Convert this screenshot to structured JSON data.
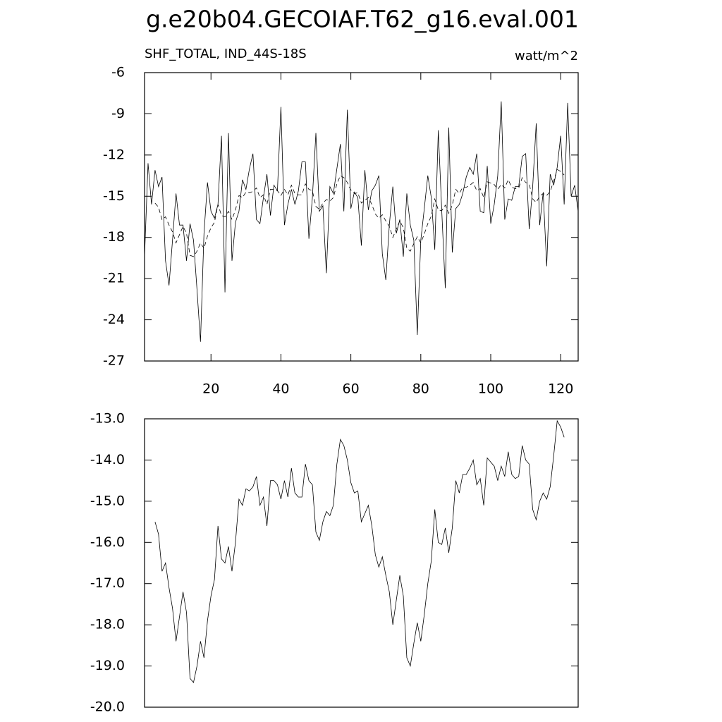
{
  "title": "g.e20b04.GECOIAF.T62_g16.eval.001",
  "chart_data": [
    {
      "type": "line",
      "subtitle": "SHF_TOTAL, IND_44S-18S",
      "units": "watt/m^2",
      "x": [
        1,
        2,
        3,
        4,
        5,
        6,
        7,
        8,
        9,
        10,
        11,
        12,
        13,
        14,
        15,
        16,
        17,
        18,
        19,
        20,
        21,
        22,
        23,
        24,
        25,
        26,
        27,
        28,
        29,
        30,
        31,
        32,
        33,
        34,
        35,
        36,
        37,
        38,
        39,
        40,
        41,
        42,
        43,
        44,
        45,
        46,
        47,
        48,
        49,
        50,
        51,
        52,
        53,
        54,
        55,
        56,
        57,
        58,
        59,
        60,
        61,
        62,
        63,
        64,
        65,
        66,
        67,
        68,
        69,
        70,
        71,
        72,
        73,
        74,
        75,
        76,
        77,
        78,
        79,
        80,
        81,
        82,
        83,
        84,
        85,
        86,
        87,
        88,
        89,
        90,
        91,
        92,
        93,
        94,
        95,
        96,
        97,
        98,
        99,
        100,
        101,
        102,
        103,
        104,
        105,
        106,
        107,
        108,
        109,
        110,
        111,
        112,
        113,
        114,
        115,
        116,
        117,
        118,
        119,
        120,
        121,
        122,
        123,
        124,
        125
      ],
      "xlim": [
        1,
        125
      ],
      "ylim": [
        -27,
        -6
      ],
      "xticks": [
        20,
        40,
        60,
        80,
        100,
        120
      ],
      "yticks": [
        -6,
        -9,
        -12,
        -15,
        -18,
        -21,
        -24,
        -27
      ],
      "series": [
        {
          "color": "#000000",
          "dash": false,
          "values": [
            -19.4,
            -12.6,
            -15.6,
            -13.1,
            -14.3,
            -13.6,
            -19.7,
            -21.5,
            -18.2,
            -14.8,
            -17.1,
            -17.1,
            -19.7,
            -17.0,
            -18.2,
            -21.8,
            -25.6,
            -17.7,
            -14.0,
            -16.1,
            -16.6,
            -15.6,
            -10.6,
            -22.0,
            -10.4,
            -19.7,
            -16.9,
            -16.1,
            -13.8,
            -14.5,
            -13.0,
            -11.9,
            -16.7,
            -17.0,
            -15.1,
            -13.4,
            -16.4,
            -14.2,
            -14.6,
            -8.5,
            -17.1,
            -15.6,
            -14.5,
            -15.6,
            -14.6,
            -12.5,
            -12.5,
            -18.1,
            -15.1,
            -10.4,
            -16.1,
            -15.7,
            -20.6,
            -14.3,
            -14.8,
            -13.0,
            -11.2,
            -16.1,
            -8.7,
            -15.9,
            -14.7,
            -15.1,
            -18.6,
            -13.1,
            -16.0,
            -14.6,
            -14.2,
            -13.5,
            -19.2,
            -21.1,
            -17.1,
            -14.3,
            -17.7,
            -16.7,
            -19.4,
            -14.8,
            -17.1,
            -18.2,
            -25.1,
            -18.2,
            -15.9,
            -13.5,
            -15.1,
            -18.9,
            -10.2,
            -16.1,
            -21.7,
            -10.0,
            -19.1,
            -15.9,
            -15.6,
            -14.8,
            -13.6,
            -12.9,
            -13.4,
            -11.9,
            -16.1,
            -16.2,
            -12.8,
            -17.0,
            -15.6,
            -13.5,
            -8.1,
            -16.7,
            -15.2,
            -15.3,
            -14.3,
            -14.3,
            -12.1,
            -11.9,
            -17.4,
            -14.3,
            -9.7,
            -17.1,
            -14.7,
            -20.1,
            -13.4,
            -14.2,
            -12.9,
            -10.6,
            -15.6,
            -8.2,
            -15.0,
            -14.2,
            -16.1
          ]
        },
        {
          "color": "#000000",
          "dash": true,
          "values": [
            null,
            null,
            null,
            -15.5,
            -15.8,
            -16.7,
            -16.5,
            -17.1,
            -17.6,
            -18.4,
            -17.8,
            -17.2,
            -17.7,
            -19.3,
            -19.4,
            -19.0,
            -18.4,
            -18.8,
            -17.9,
            -17.3,
            -16.9,
            -15.6,
            -16.4,
            -16.5,
            -16.1,
            -16.7,
            -16.0,
            -14.95,
            -15.1,
            -14.7,
            -14.75,
            -14.65,
            -14.4,
            -15.1,
            -14.9,
            -15.6,
            -14.5,
            -14.5,
            -14.6,
            -14.95,
            -14.5,
            -14.9,
            -14.2,
            -14.8,
            -14.9,
            -14.9,
            -14.1,
            -14.5,
            -14.6,
            -15.75,
            -15.95,
            -15.5,
            -15.25,
            -15.35,
            -15.1,
            -14.1,
            -13.5,
            -13.65,
            -14.0,
            -14.55,
            -14.8,
            -14.75,
            -15.5,
            -15.3,
            -15.1,
            -15.6,
            -16.3,
            -16.6,
            -16.35,
            -16.8,
            -17.2,
            -18.0,
            -17.4,
            -16.8,
            -17.3,
            -18.8,
            -19.0,
            -18.45,
            -17.95,
            -18.4,
            -17.75,
            -17.0,
            -16.45,
            -15.2,
            -16.0,
            -16.05,
            -15.65,
            -16.25,
            -15.65,
            -14.5,
            -14.8,
            -14.35,
            -14.35,
            -14.2,
            -14.0,
            -14.6,
            -14.45,
            -15.1,
            -13.95,
            -14.05,
            -14.15,
            -14.5,
            -14.15,
            -14.4,
            -13.8,
            -14.35,
            -14.45,
            -14.4,
            -13.65,
            -14.0,
            -14.1,
            -15.2,
            -15.45,
            -15.0,
            -14.8,
            -14.95,
            -14.65,
            -13.9,
            -13.05,
            -13.2,
            -13.45,
            null,
            null,
            null,
            null
          ]
        }
      ]
    },
    {
      "type": "line",
      "x": [
        1,
        2,
        3,
        4,
        5,
        6,
        7,
        8,
        9,
        10,
        11,
        12,
        13,
        14,
        15,
        16,
        17,
        18,
        19,
        20,
        21,
        22,
        23,
        24,
        25,
        26,
        27,
        28,
        29,
        30,
        31,
        32,
        33,
        34,
        35,
        36,
        37,
        38,
        39,
        40,
        41,
        42,
        43,
        44,
        45,
        46,
        47,
        48,
        49,
        50,
        51,
        52,
        53,
        54,
        55,
        56,
        57,
        58,
        59,
        60,
        61,
        62,
        63,
        64,
        65,
        66,
        67,
        68,
        69,
        70,
        71,
        72,
        73,
        74,
        75,
        76,
        77,
        78,
        79,
        80,
        81,
        82,
        83,
        84,
        85,
        86,
        87,
        88,
        89,
        90,
        91,
        92,
        93,
        94,
        95,
        96,
        97,
        98,
        99,
        100,
        101,
        102,
        103,
        104,
        105,
        106,
        107,
        108,
        109,
        110,
        111,
        112,
        113,
        114,
        115,
        116,
        117,
        118,
        119,
        120,
        121,
        122,
        123,
        124,
        125
      ],
      "xlim": [
        1,
        125
      ],
      "ylim": [
        -20,
        -13
      ],
      "yticks": [
        {
          "value": -13,
          "label": "-13.0"
        },
        {
          "value": -14,
          "label": "-14.0"
        },
        {
          "value": -15,
          "label": "-15.0"
        },
        {
          "value": -16,
          "label": "-16.0"
        },
        {
          "value": -17,
          "label": "-17.0"
        },
        {
          "value": -18,
          "label": "-18.0"
        },
        {
          "value": -19,
          "label": "-19.0"
        },
        {
          "value": -20,
          "label": "-20.0"
        }
      ],
      "series": [
        {
          "color": "#000000",
          "dash": false,
          "values": [
            null,
            null,
            null,
            -15.5,
            -15.8,
            -16.7,
            -16.5,
            -17.1,
            -17.6,
            -18.4,
            -17.8,
            -17.2,
            -17.7,
            -19.3,
            -19.4,
            -19.0,
            -18.4,
            -18.8,
            -17.9,
            -17.3,
            -16.9,
            -15.6,
            -16.4,
            -16.5,
            -16.1,
            -16.7,
            -16.0,
            -14.95,
            -15.1,
            -14.7,
            -14.75,
            -14.65,
            -14.4,
            -15.1,
            -14.9,
            -15.6,
            -14.5,
            -14.5,
            -14.6,
            -14.95,
            -14.5,
            -14.9,
            -14.2,
            -14.8,
            -14.9,
            -14.9,
            -14.1,
            -14.5,
            -14.6,
            -15.75,
            -15.95,
            -15.5,
            -15.25,
            -15.35,
            -15.1,
            -14.1,
            -13.5,
            -13.65,
            -14.0,
            -14.55,
            -14.8,
            -14.75,
            -15.5,
            -15.3,
            -15.1,
            -15.6,
            -16.3,
            -16.6,
            -16.35,
            -16.8,
            -17.2,
            -18.0,
            -17.4,
            -16.8,
            -17.3,
            -18.8,
            -19.0,
            -18.45,
            -17.95,
            -18.4,
            -17.75,
            -17.0,
            -16.45,
            -15.2,
            -16.0,
            -16.05,
            -15.65,
            -16.25,
            -15.65,
            -14.5,
            -14.8,
            -14.35,
            -14.35,
            -14.2,
            -14.0,
            -14.6,
            -14.45,
            -15.1,
            -13.95,
            -14.05,
            -14.15,
            -14.5,
            -14.15,
            -14.4,
            -13.8,
            -14.35,
            -14.45,
            -14.4,
            -13.65,
            -14.0,
            -14.1,
            -15.2,
            -15.45,
            -15.0,
            -14.8,
            -14.95,
            -14.65,
            -13.9,
            -13.05,
            -13.2,
            -13.45,
            null,
            null,
            null,
            null
          ]
        }
      ]
    }
  ]
}
